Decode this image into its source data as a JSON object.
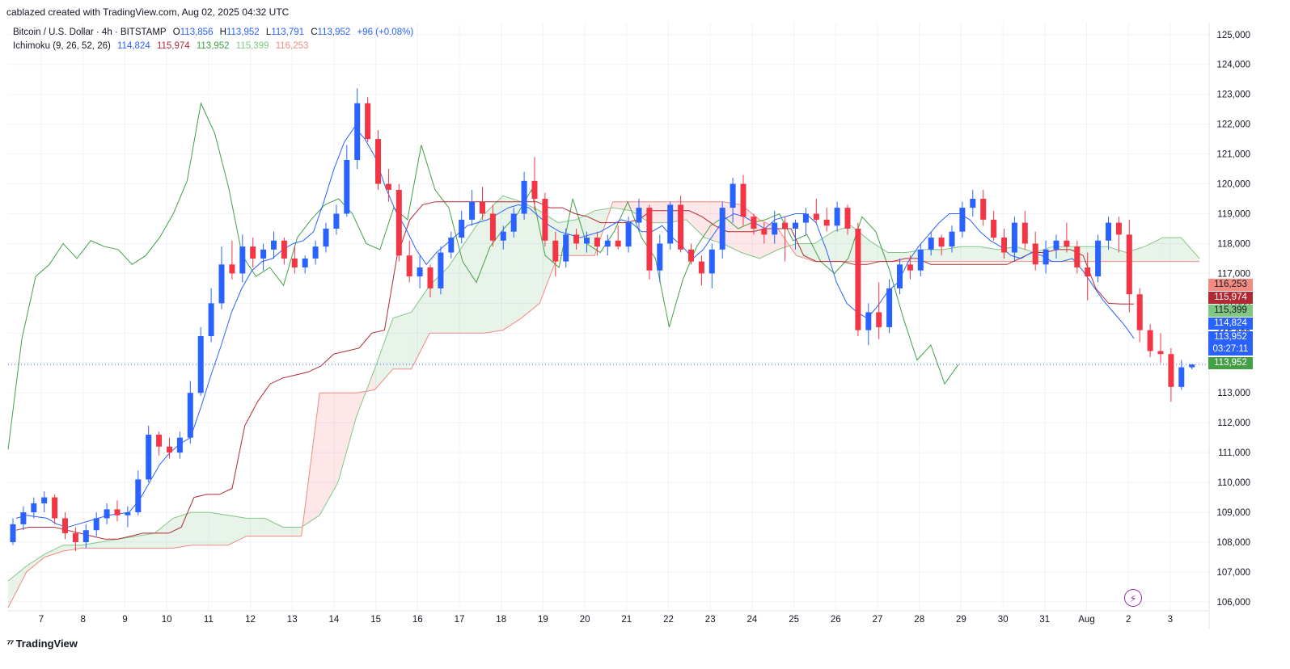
{
  "header": {
    "created": "cablazed created with TradingView.com, Aug 02, 2025 04:32 UTC"
  },
  "legend": {
    "symbol": "Bitcoin / U.S. Dollar · 4h · BITSTAMP",
    "o_label": "O",
    "o": "113,856",
    "h_label": "H",
    "h": "113,952",
    "l_label": "L",
    "l": "113,791",
    "c_label": "C",
    "c": "113,952",
    "change": "+96 (+0.08%)",
    "ichimoku": "Ichimoku (9, 26, 52, 26)",
    "conversion": "114,824",
    "base": "115,974",
    "lagging": "113,952",
    "lead1": "115,399",
    "lead2": "116,253"
  },
  "price_labels": {
    "lead2": "116,253",
    "base": "115,974",
    "lead1": "115,399",
    "conversion": "114,824",
    "last": "113,952",
    "countdown": "03:27:11",
    "lagging": "113,952"
  },
  "colors": {
    "up": "#2962ff",
    "down": "#f23645",
    "conversion": "#2962ff",
    "base": "#b22833",
    "lagging": "#43a047",
    "lead1": "#81c784",
    "lead2": "#f28b82"
  },
  "footer": {
    "brand": "TradingView"
  },
  "chart_data": {
    "type": "candlestick",
    "title": "Bitcoin / U.S. Dollar · 4h · BITSTAMP",
    "y_ticks": [
      "125,000",
      "124,000",
      "123,000",
      "122,000",
      "121,000",
      "120,000",
      "119,000",
      "118,000",
      "117,000",
      "116,000",
      "115,000",
      "114,000",
      "113,000",
      "112,000",
      "111,000",
      "110,000",
      "109,000",
      "108,000",
      "107,000",
      "106,000"
    ],
    "ylim": [
      105700,
      125400
    ],
    "x_ticks": [
      "7",
      "8",
      "9",
      "10",
      "11",
      "12",
      "13",
      "14",
      "15",
      "16",
      "17",
      "18",
      "19",
      "20",
      "21",
      "22",
      "23",
      "24",
      "25",
      "26",
      "27",
      "28",
      "29",
      "30",
      "31",
      "Aug",
      "2",
      "3"
    ],
    "candles": [
      [
        108000,
        108800,
        107900,
        108600
      ],
      [
        108600,
        109200,
        108400,
        109000
      ],
      [
        109000,
        109500,
        108800,
        109300
      ],
      [
        109300,
        109700,
        109000,
        109500
      ],
      [
        109500,
        109600,
        108600,
        108800
      ],
      [
        108800,
        109000,
        108100,
        108300
      ],
      [
        108300,
        108500,
        107700,
        108000
      ],
      [
        108000,
        108600,
        107800,
        108400
      ],
      [
        108400,
        109000,
        108200,
        108800
      ],
      [
        108800,
        109300,
        108600,
        109100
      ],
      [
        109100,
        109400,
        108700,
        108900
      ],
      [
        108900,
        109200,
        108500,
        109000
      ],
      [
        109000,
        110400,
        108900,
        110100
      ],
      [
        110100,
        111900,
        110000,
        111600
      ],
      [
        111600,
        111700,
        110900,
        111200
      ],
      [
        111200,
        111500,
        110800,
        111000
      ],
      [
        111000,
        111700,
        110800,
        111500
      ],
      [
        111500,
        113400,
        111300,
        113000
      ],
      [
        113000,
        115200,
        112900,
        114900
      ],
      [
        114900,
        116500,
        114700,
        116000
      ],
      [
        116000,
        117900,
        115800,
        117300
      ],
      [
        117300,
        118100,
        116800,
        117000
      ],
      [
        117000,
        118300,
        116700,
        117900
      ],
      [
        117900,
        118200,
        117200,
        117500
      ],
      [
        117500,
        118000,
        117100,
        117800
      ],
      [
        117800,
        118400,
        117500,
        118100
      ],
      [
        118100,
        118200,
        117300,
        117500
      ],
      [
        117500,
        117900,
        117000,
        117200
      ],
      [
        117200,
        117600,
        117000,
        117500
      ],
      [
        117500,
        118100,
        117300,
        117900
      ],
      [
        117900,
        118700,
        117700,
        118500
      ],
      [
        118500,
        119300,
        118300,
        119000
      ],
      [
        119000,
        121300,
        118900,
        120800
      ],
      [
        120800,
        123200,
        120500,
        122700
      ],
      [
        122700,
        122900,
        121400,
        121500
      ],
      [
        121500,
        121800,
        119800,
        120000
      ],
      [
        120000,
        120500,
        119400,
        119800
      ],
      [
        119800,
        120000,
        117400,
        117600
      ],
      [
        117600,
        118100,
        116700,
        116900
      ],
      [
        116900,
        117600,
        116500,
        117200
      ],
      [
        117200,
        117300,
        116200,
        116500
      ],
      [
        116500,
        117900,
        116300,
        117700
      ],
      [
        117700,
        118400,
        117500,
        118200
      ],
      [
        118200,
        119100,
        118000,
        118800
      ],
      [
        118800,
        119800,
        118600,
        119400
      ],
      [
        119400,
        119900,
        118800,
        119000
      ],
      [
        119000,
        119300,
        117900,
        118100
      ],
      [
        118100,
        118600,
        117800,
        118400
      ],
      [
        118400,
        119200,
        118200,
        119000
      ],
      [
        119000,
        120400,
        118800,
        120100
      ],
      [
        120100,
        120900,
        119100,
        119500
      ],
      [
        119500,
        119700,
        117900,
        118100
      ],
      [
        118100,
        118400,
        116900,
        117400
      ],
      [
        117400,
        118500,
        117200,
        118300
      ],
      [
        118300,
        118500,
        117800,
        118000
      ],
      [
        118000,
        118400,
        117700,
        118200
      ],
      [
        118200,
        118400,
        117600,
        117900
      ],
      [
        117900,
        118300,
        117600,
        118100
      ],
      [
        118100,
        118600,
        117800,
        117900
      ],
      [
        117900,
        118900,
        117700,
        118700
      ],
      [
        118700,
        119500,
        118400,
        119200
      ],
      [
        119200,
        119300,
        116800,
        117100
      ],
      [
        117100,
        118300,
        116700,
        118000
      ],
      [
        118000,
        119400,
        117800,
        119300
      ],
      [
        119300,
        119600,
        117700,
        117800
      ],
      [
        117800,
        118000,
        117300,
        117400
      ],
      [
        117400,
        117600,
        116600,
        117000
      ],
      [
        117000,
        118000,
        116500,
        117800
      ],
      [
        117800,
        119400,
        117500,
        119200
      ],
      [
        119200,
        120200,
        118700,
        120000
      ],
      [
        120000,
        120300,
        118600,
        118900
      ],
      [
        118900,
        119000,
        118300,
        118500
      ],
      [
        118500,
        118700,
        118000,
        118300
      ],
      [
        118300,
        119100,
        118000,
        118700
      ],
      [
        118700,
        118900,
        117400,
        118500
      ],
      [
        118500,
        118800,
        117800,
        118700
      ],
      [
        118700,
        119200,
        118300,
        119000
      ],
      [
        119000,
        119500,
        118700,
        118800
      ],
      [
        118800,
        119200,
        118400,
        118600
      ],
      [
        118600,
        119400,
        118400,
        119200
      ],
      [
        119200,
        119300,
        118300,
        118500
      ],
      [
        118500,
        118700,
        114900,
        115100
      ],
      [
        115100,
        116000,
        114600,
        115700
      ],
      [
        115700,
        116700,
        114800,
        115200
      ],
      [
        115200,
        116800,
        115000,
        116500
      ],
      [
        116500,
        117500,
        116300,
        117300
      ],
      [
        117300,
        117600,
        116800,
        117100
      ],
      [
        117100,
        118000,
        116900,
        117800
      ],
      [
        117800,
        118400,
        117600,
        118200
      ],
      [
        118200,
        118300,
        117600,
        117900
      ],
      [
        117900,
        118600,
        117700,
        118400
      ],
      [
        118400,
        119400,
        118200,
        119200
      ],
      [
        119200,
        119800,
        118900,
        119500
      ],
      [
        119500,
        119800,
        118600,
        118800
      ],
      [
        118800,
        119100,
        118100,
        118200
      ],
      [
        118200,
        118500,
        117500,
        117700
      ],
      [
        117700,
        118900,
        117400,
        118700
      ],
      [
        118700,
        119100,
        117800,
        118000
      ],
      [
        118000,
        118400,
        117100,
        117300
      ],
      [
        117300,
        118100,
        117000,
        117800
      ],
      [
        117800,
        118300,
        117500,
        118100
      ],
      [
        118100,
        118700,
        117700,
        117900
      ],
      [
        117900,
        118100,
        117000,
        117200
      ],
      [
        117200,
        117700,
        116100,
        116900
      ],
      [
        116900,
        118300,
        116700,
        118100
      ],
      [
        118100,
        118900,
        117800,
        118700
      ],
      [
        118700,
        118900,
        117700,
        118300
      ],
      [
        118300,
        118800,
        115700,
        116300
      ],
      [
        116300,
        116500,
        114700,
        115100
      ],
      [
        115100,
        115300,
        114200,
        114400
      ],
      [
        114400,
        115000,
        114000,
        114300
      ],
      [
        114300,
        114500,
        112700,
        113200
      ],
      [
        113200,
        114100,
        113100,
        113856
      ],
      [
        113856,
        113952,
        113791,
        113952
      ]
    ],
    "conversion_line": [
      108800,
      108900,
      108850,
      108800,
      108600,
      108500,
      108600,
      108700,
      108800,
      108900,
      108950,
      109000,
      109400,
      110000,
      110600,
      111000,
      111300,
      111500,
      112500,
      113600,
      114600,
      115700,
      116500,
      117100,
      117400,
      117500,
      117800,
      118000,
      118100,
      118400,
      119400,
      120500,
      121400,
      121900,
      121500,
      120900,
      119900,
      119100,
      118500,
      117800,
      117300,
      117700,
      118000,
      118300,
      118600,
      118700,
      118800,
      119000,
      119200,
      119300,
      119200,
      118900,
      118600,
      118400,
      118300,
      118200,
      118300,
      118400,
      118600,
      118800,
      118700,
      118400,
      118400,
      118600,
      118200,
      117900,
      117500,
      117800,
      118300,
      118800,
      119000,
      118900,
      118700,
      118500,
      118800,
      118900,
      119000,
      119000,
      118700,
      117800,
      116700,
      116000,
      115700,
      115500,
      115900,
      116400,
      116700,
      117400,
      117900,
      118300,
      118700,
      119000,
      119000,
      118800,
      118400,
      118100,
      117900,
      117600,
      117500,
      117700,
      117600,
      117400,
      117400,
      117500,
      117100,
      116600,
      116100,
      115700,
      115300,
      114824
    ],
    "base_line": [
      108400,
      108500,
      108500,
      108500,
      108400,
      108300,
      108200,
      108100,
      108100,
      108200,
      108300,
      108300,
      108300,
      108500,
      109500,
      109600,
      109600,
      109800,
      111900,
      112700,
      113300,
      113500,
      113600,
      113700,
      113900,
      114300,
      114400,
      114500,
      115000,
      115100,
      117600,
      118800,
      119300,
      119400,
      119400,
      119400,
      119400,
      119400,
      119400,
      119400,
      119400,
      119400,
      119200,
      119200,
      119000,
      118900,
      118700,
      118700,
      118700,
      118800,
      119100,
      119100,
      119100,
      119100,
      118900,
      118600,
      118400,
      118400,
      118400,
      118500,
      118500,
      118500,
      117600,
      117400,
      117400,
      117400,
      117300,
      117300,
      117400,
      117400,
      117500,
      117500,
      117300,
      117300,
      117300,
      117300,
      117300,
      117300,
      117300,
      117500,
      117700,
      117700,
      117800,
      117800,
      117600,
      116500,
      116000,
      115974,
      115974
    ],
    "lagging_span": [
      111100,
      114800,
      116900,
      117300,
      118000,
      117500,
      118100,
      117900,
      117800,
      117300,
      117600,
      118200,
      119000,
      120100,
      122700,
      121700,
      119900,
      117600,
      116900,
      117200,
      116600,
      118200,
      118800,
      119300,
      119500,
      119000,
      118000,
      117800,
      119200,
      118800,
      121300,
      119800,
      119200,
      117400,
      116700,
      117900,
      118500,
      119000,
      119800,
      117600,
      117200,
      119500,
      118000,
      117700,
      118400,
      119400,
      118200,
      117500,
      115200,
      116800,
      117900,
      118600,
      118900,
      118500,
      118700,
      118800,
      119000,
      118100,
      118300,
      117400,
      117000,
      117500,
      118900,
      118400,
      117100,
      115500,
      114100,
      114600,
      113300,
      113952
    ],
    "lead1": [
      106700,
      107200,
      107600,
      107900,
      107900,
      108000,
      108100,
      108200,
      108300,
      108800,
      109000,
      109000,
      108900,
      108800,
      108800,
      108500,
      108500,
      108900,
      110000,
      112200,
      113800,
      115500,
      115700,
      116600,
      117200,
      118100,
      119000,
      119600,
      119400,
      119100,
      118700,
      118800,
      119100,
      119200,
      119100,
      118700,
      118700,
      118800,
      118200,
      118000,
      117700,
      117500,
      117800,
      118000,
      118000,
      118400,
      118600,
      118100,
      117700,
      117700,
      117800,
      117800,
      117900,
      117900,
      117800,
      117900,
      117700,
      117900,
      117900,
      117900,
      117900,
      117700,
      117900,
      118200,
      118200,
      117500
    ],
    "lead2": [
      105800,
      107000,
      107500,
      107700,
      107800,
      107800,
      107800,
      107800,
      107800,
      107800,
      107900,
      107900,
      107900,
      108200,
      108200,
      108200,
      108200,
      113000,
      113000,
      113000,
      113100,
      113800,
      113800,
      115000,
      115000,
      115000,
      115000,
      115100,
      115500,
      116000,
      117600,
      117600,
      117600,
      119400,
      119400,
      119400,
      119400,
      119400,
      119400,
      119400,
      119300,
      118800,
      118500,
      117600,
      117400,
      117400,
      117400,
      117400,
      117400,
      117400,
      117400,
      117400,
      117400,
      117400,
      117400,
      117400,
      117400,
      117400,
      117400,
      117400,
      117400,
      117400,
      117400,
      117400,
      117400,
      117400
    ]
  }
}
